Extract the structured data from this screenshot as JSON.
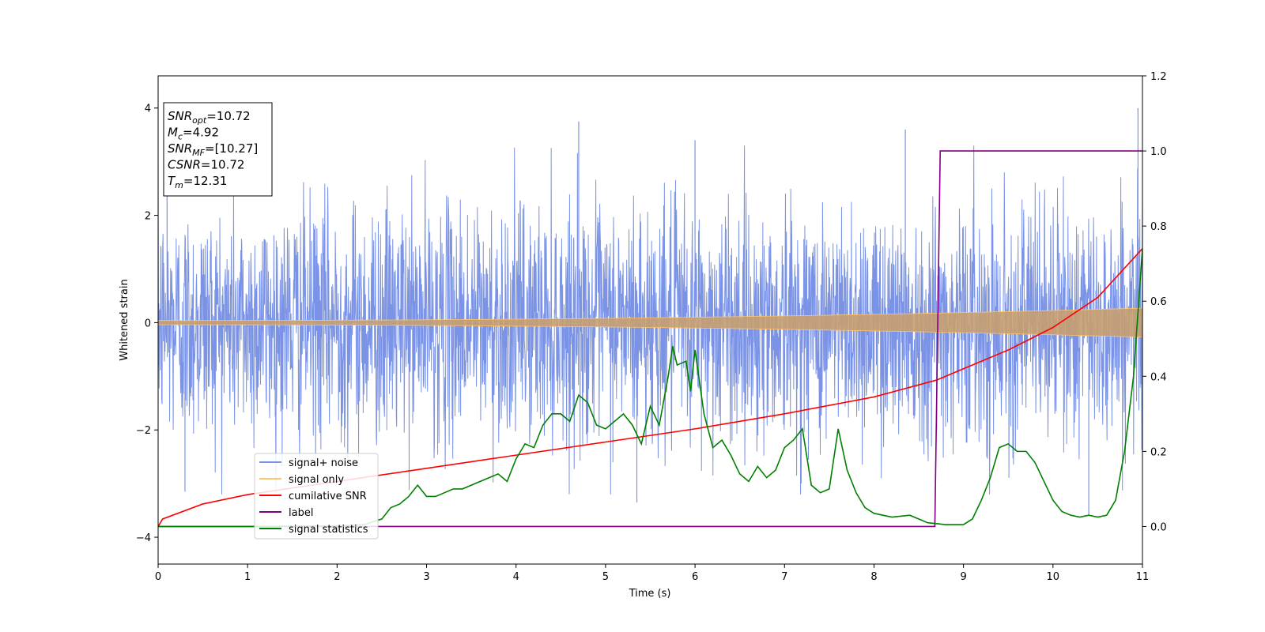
{
  "chart_data": {
    "type": "line",
    "xlabel": "Time (s)",
    "ylabel": "Whitened strain",
    "xlim": [
      0,
      11
    ],
    "ylim_left": [
      -4.5,
      4.6
    ],
    "ylim_right": [
      -0.1,
      1.2
    ],
    "x_ticks": [
      0,
      1,
      2,
      3,
      4,
      5,
      6,
      7,
      8,
      9,
      10,
      11
    ],
    "y_ticks_left": [
      -4,
      -2,
      0,
      2,
      4
    ],
    "y_ticks_right": [
      "0.0",
      "0.2",
      "0.4",
      "0.6",
      "0.8",
      "1.0",
      "1.2"
    ],
    "grid": false,
    "legend_position": "lower-left",
    "annotation": {
      "lines": [
        {
          "main": "SNR",
          "sub": "opt",
          "rest": "=10.72"
        },
        {
          "main": "M",
          "sub": "c",
          "rest": "=4.92"
        },
        {
          "main": "SNR",
          "sub": "MF",
          "rest": "=[10.27]"
        },
        {
          "main": "CSNR",
          "sub": "",
          "rest": "=10.72"
        },
        {
          "main": "T",
          "sub": "m",
          "rest": "=12.31"
        }
      ]
    },
    "series": [
      {
        "name": "signal+ noise",
        "color": "#7a93e6",
        "axis": "left",
        "description_kind": "noise_band",
        "typical_amplitude": 1.75,
        "peak_examples": [
          [
            0.1,
            3.0
          ],
          [
            4.7,
            3.75
          ],
          [
            6.0,
            3.4
          ],
          [
            8.35,
            3.6
          ],
          [
            10.95,
            4.0
          ],
          [
            0.3,
            -3.15
          ],
          [
            5.35,
            -3.35
          ],
          [
            10.4,
            -3.6
          ]
        ]
      },
      {
        "name": "signal only",
        "color": "#ffc56b",
        "axis": "left",
        "description_kind": "chirp",
        "amplitude_start": 0.04,
        "amplitude_end": 0.27
      },
      {
        "name": "cumilative SNR",
        "color": "#ff0000",
        "axis": "right",
        "x": [
          0,
          0.05,
          0.5,
          1,
          2,
          3,
          4,
          5,
          6,
          7,
          8,
          8.7,
          9,
          9.5,
          10,
          10.5,
          11
        ],
        "y": [
          0.0,
          0.02,
          0.06,
          0.085,
          0.12,
          0.155,
          0.19,
          0.225,
          0.26,
          0.3,
          0.345,
          0.39,
          0.42,
          0.47,
          0.53,
          0.61,
          0.74
        ]
      },
      {
        "name": "label",
        "color": "#800080",
        "axis": "right",
        "x": [
          0,
          8.68,
          8.74,
          11
        ],
        "y": [
          0,
          0,
          1,
          1
        ]
      },
      {
        "name": "signal statistics",
        "color": "#008000",
        "axis": "right",
        "x": [
          0,
          1,
          2,
          2.3,
          2.5,
          2.6,
          2.7,
          2.8,
          2.9,
          3.0,
          3.1,
          3.2,
          3.3,
          3.4,
          3.5,
          3.6,
          3.7,
          3.8,
          3.9,
          4.0,
          4.1,
          4.2,
          4.3,
          4.4,
          4.5,
          4.6,
          4.7,
          4.8,
          4.9,
          5.0,
          5.1,
          5.2,
          5.3,
          5.4,
          5.5,
          5.6,
          5.7,
          5.75,
          5.8,
          5.9,
          5.95,
          6.0,
          6.1,
          6.2,
          6.3,
          6.4,
          6.5,
          6.6,
          6.7,
          6.8,
          6.9,
          7.0,
          7.1,
          7.2,
          7.3,
          7.4,
          7.5,
          7.6,
          7.7,
          7.8,
          7.9,
          8.0,
          8.2,
          8.4,
          8.6,
          8.8,
          9.0,
          9.1,
          9.2,
          9.3,
          9.4,
          9.5,
          9.6,
          9.7,
          9.8,
          9.9,
          10.0,
          10.1,
          10.2,
          10.3,
          10.4,
          10.5,
          10.6,
          10.7,
          10.8,
          10.9,
          11.0
        ],
        "y": [
          0.0,
          0.0,
          0.002,
          0.005,
          0.02,
          0.05,
          0.06,
          0.08,
          0.11,
          0.08,
          0.08,
          0.09,
          0.1,
          0.1,
          0.11,
          0.12,
          0.13,
          0.14,
          0.12,
          0.18,
          0.22,
          0.21,
          0.27,
          0.3,
          0.3,
          0.28,
          0.35,
          0.33,
          0.27,
          0.26,
          0.28,
          0.3,
          0.27,
          0.22,
          0.32,
          0.27,
          0.4,
          0.48,
          0.43,
          0.44,
          0.36,
          0.47,
          0.3,
          0.21,
          0.23,
          0.19,
          0.14,
          0.12,
          0.16,
          0.13,
          0.15,
          0.21,
          0.23,
          0.26,
          0.11,
          0.09,
          0.1,
          0.26,
          0.15,
          0.09,
          0.05,
          0.035,
          0.025,
          0.03,
          0.01,
          0.005,
          0.005,
          0.02,
          0.07,
          0.13,
          0.21,
          0.22,
          0.2,
          0.2,
          0.17,
          0.12,
          0.07,
          0.04,
          0.03,
          0.025,
          0.03,
          0.025,
          0.03,
          0.07,
          0.2,
          0.4,
          0.74
        ]
      }
    ]
  }
}
